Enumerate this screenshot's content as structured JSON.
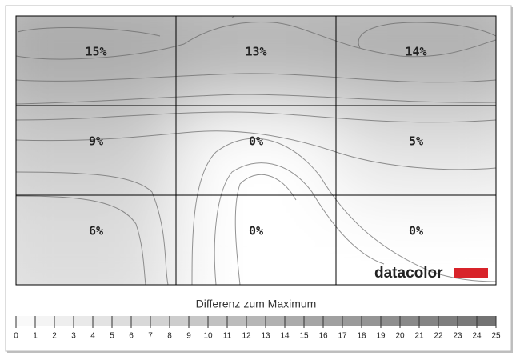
{
  "chart_data": {
    "type": "heatmap",
    "values": [
      [
        15,
        13,
        14
      ],
      [
        9,
        0,
        5
      ],
      [
        6,
        0,
        0
      ]
    ],
    "value_labels": [
      [
        "15%",
        "13%",
        "14%"
      ],
      [
        "9%",
        "0%",
        "5%"
      ],
      [
        "6%",
        "0%",
        "0%"
      ]
    ],
    "colorbar": {
      "title": "Differenz zum Maximum",
      "lim": [
        0,
        25
      ],
      "ticks": [
        0,
        1,
        2,
        3,
        4,
        5,
        6,
        7,
        8,
        9,
        10,
        11,
        12,
        13,
        14,
        15,
        16,
        17,
        18,
        19,
        20,
        21,
        22,
        23,
        24,
        25
      ]
    }
  },
  "brand": "datacolor"
}
